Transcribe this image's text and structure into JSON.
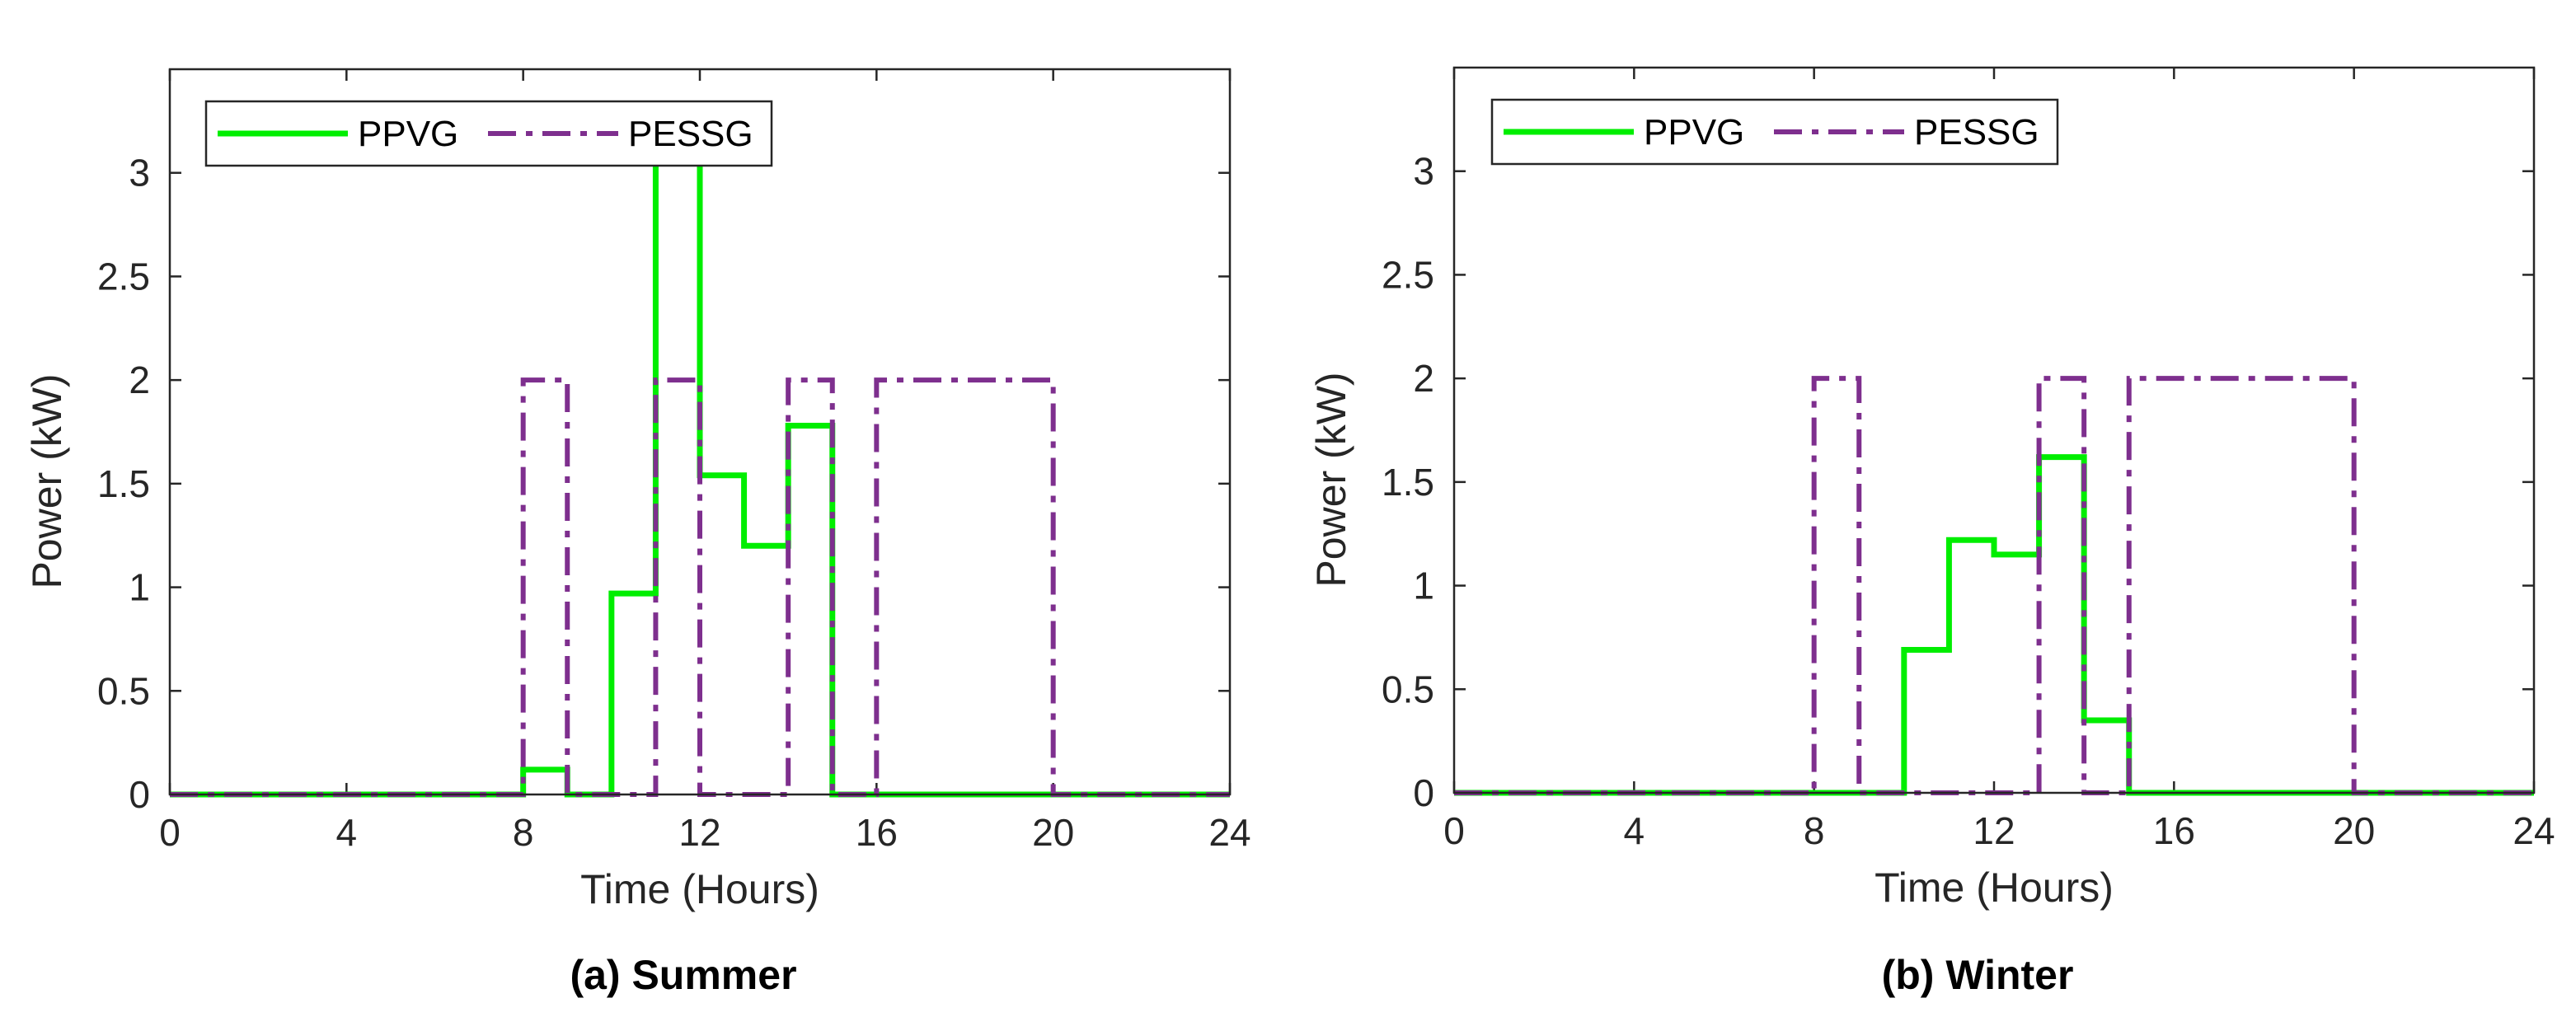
{
  "chart_data": [
    {
      "type": "line",
      "step": "post",
      "caption": "(a) Summer",
      "xlabel": "Time (Hours)",
      "ylabel": "Power (kW)",
      "xlim": [
        0,
        24
      ],
      "ylim": [
        0,
        3.5
      ],
      "xticks": [
        0,
        4,
        8,
        12,
        16,
        20,
        24
      ],
      "xtick_labels": [
        "0",
        "4",
        "8",
        "12",
        "16",
        "20",
        "24"
      ],
      "yticks": [
        0,
        0.5,
        1,
        1.5,
        2,
        2.5,
        3
      ],
      "ytick_labels": [
        "0",
        "0.5",
        "1",
        "1.5",
        "2",
        "2.5",
        "3"
      ],
      "legend_position": "top-left",
      "x": [
        0,
        1,
        2,
        3,
        4,
        5,
        6,
        7,
        8,
        9,
        10,
        11,
        12,
        13,
        14,
        15,
        16,
        17,
        18,
        19,
        20,
        21,
        22,
        23,
        24
      ],
      "series": [
        {
          "name": "PPVG",
          "color": "#00ee00",
          "style": "solid",
          "values": [
            0,
            0,
            0,
            0,
            0,
            0,
            0,
            0,
            0.12,
            0,
            0.97,
            3.1,
            1.54,
            1.2,
            1.78,
            0,
            0,
            0,
            0,
            0,
            0,
            0,
            0,
            0,
            0
          ]
        },
        {
          "name": "PESSG",
          "color": "#7e2f8e",
          "style": "dashdot",
          "values": [
            0,
            0,
            0,
            0,
            0,
            0,
            0,
            0,
            2,
            0,
            0,
            2,
            0,
            0,
            2,
            0,
            2,
            2,
            2,
            2,
            0,
            0,
            0,
            0,
            0
          ]
        }
      ]
    },
    {
      "type": "line",
      "step": "post",
      "caption": "(b) Winter",
      "xlabel": "Time (Hours)",
      "ylabel": "Power (kW)",
      "xlim": [
        0,
        24
      ],
      "ylim": [
        0,
        3.5
      ],
      "xticks": [
        0,
        4,
        8,
        12,
        16,
        20,
        24
      ],
      "xtick_labels": [
        "0",
        "4",
        "8",
        "12",
        "16",
        "20",
        "24"
      ],
      "yticks": [
        0,
        0.5,
        1,
        1.5,
        2,
        2.5,
        3
      ],
      "ytick_labels": [
        "0",
        "0.5",
        "1",
        "1.5",
        "2",
        "2.5",
        "3"
      ],
      "legend_position": "top-left",
      "x": [
        0,
        1,
        2,
        3,
        4,
        5,
        6,
        7,
        8,
        9,
        10,
        11,
        12,
        13,
        14,
        15,
        16,
        17,
        18,
        19,
        20,
        21,
        22,
        23,
        24
      ],
      "series": [
        {
          "name": "PPVG",
          "color": "#00ee00",
          "style": "solid",
          "values": [
            0,
            0,
            0,
            0,
            0,
            0,
            0,
            0,
            0,
            0,
            0.69,
            1.22,
            1.15,
            1.62,
            0.35,
            0,
            0,
            0,
            0,
            0,
            0,
            0,
            0,
            0,
            0
          ]
        },
        {
          "name": "PESSG",
          "color": "#7e2f8e",
          "style": "dashdot",
          "values": [
            0,
            0,
            0,
            0,
            0,
            0,
            0,
            0,
            2,
            0,
            0,
            0,
            0,
            2,
            0,
            2,
            2,
            2,
            2,
            2,
            0,
            0,
            0,
            0,
            0
          ]
        }
      ]
    }
  ]
}
